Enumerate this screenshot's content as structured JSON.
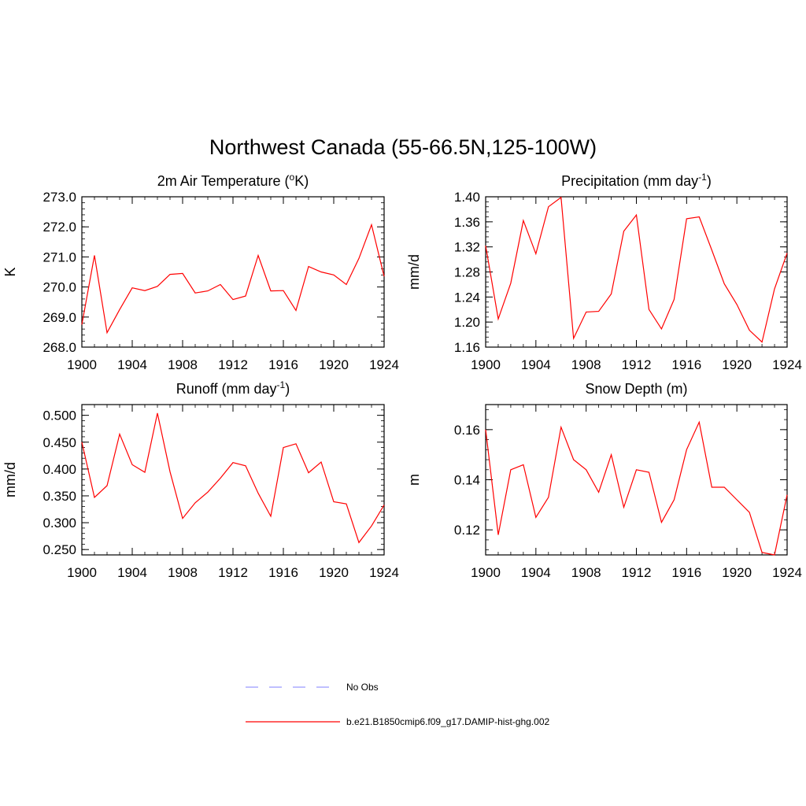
{
  "figure": {
    "title": "Northwest Canada (55-66.5N,125-100W)"
  },
  "chart_data": [
    {
      "type": "line",
      "title_main": "2m Air Temperature (",
      "title_sup": "o",
      "title_end": "K)",
      "ylabel": "K",
      "xlim": [
        1900,
        1924
      ],
      "ylim": [
        268.0,
        273.0
      ],
      "yticks": [
        268.0,
        269.0,
        270.0,
        271.0,
        272.0,
        273.0
      ],
      "ytick_labels": [
        "268.0",
        "269.0",
        "270.0",
        "271.0",
        "272.0",
        "273.0"
      ],
      "xticks": [
        1900,
        1904,
        1908,
        1912,
        1916,
        1920,
        1924
      ],
      "xtick_labels": [
        "1900",
        "1904",
        "1908",
        "1912",
        "1916",
        "1920",
        "1924"
      ],
      "x": [
        1900,
        1901,
        1902,
        1903,
        1904,
        1905,
        1906,
        1907,
        1908,
        1909,
        1910,
        1911,
        1912,
        1913,
        1914,
        1915,
        1916,
        1917,
        1918,
        1919,
        1920,
        1921,
        1922,
        1923,
        1924
      ],
      "series": [
        {
          "color": "#ff0000",
          "values": [
            268.75,
            271.05,
            268.48,
            269.25,
            269.97,
            269.88,
            270.02,
            270.42,
            270.45,
            269.8,
            269.87,
            270.08,
            269.58,
            269.7,
            271.05,
            269.87,
            269.88,
            269.22,
            270.68,
            270.5,
            270.4,
            270.08,
            270.95,
            272.07,
            270.35
          ]
        }
      ]
    },
    {
      "type": "line",
      "title_main": "Precipitation (mm day",
      "title_sup": "-1",
      "title_end": ")",
      "ylabel": "mm/d",
      "xlim": [
        1900,
        1924
      ],
      "ylim": [
        1.16,
        1.4
      ],
      "yticks": [
        1.16,
        1.2,
        1.24,
        1.28,
        1.32,
        1.36,
        1.4
      ],
      "ytick_labels": [
        "1.16",
        "1.20",
        "1.24",
        "1.28",
        "1.32",
        "1.36",
        "1.40"
      ],
      "xticks": [
        1900,
        1904,
        1908,
        1912,
        1916,
        1920,
        1924
      ],
      "xtick_labels": [
        "1900",
        "1904",
        "1908",
        "1912",
        "1916",
        "1920",
        "1924"
      ],
      "x": [
        1900,
        1901,
        1902,
        1903,
        1904,
        1905,
        1906,
        1907,
        1908,
        1909,
        1910,
        1911,
        1912,
        1913,
        1914,
        1915,
        1916,
        1917,
        1918,
        1919,
        1920,
        1921,
        1922,
        1923,
        1924
      ],
      "series": [
        {
          "color": "#ff0000",
          "values": [
            1.322,
            1.205,
            1.262,
            1.362,
            1.309,
            1.384,
            1.399,
            1.174,
            1.216,
            1.217,
            1.245,
            1.345,
            1.371,
            1.22,
            1.189,
            1.236,
            1.365,
            1.368,
            1.315,
            1.261,
            1.228,
            1.187,
            1.168,
            1.253,
            1.31
          ]
        }
      ]
    },
    {
      "type": "line",
      "title_main": "Runoff (mm day",
      "title_sup": "-1",
      "title_end": ")",
      "ylabel": "mm/d",
      "xlim": [
        1900,
        1924
      ],
      "ylim": [
        0.24,
        0.52
      ],
      "yticks": [
        0.25,
        0.3,
        0.35,
        0.4,
        0.45,
        0.5
      ],
      "ytick_labels": [
        "0.250",
        "0.300",
        "0.350",
        "0.400",
        "0.450",
        "0.500"
      ],
      "xticks": [
        1900,
        1904,
        1908,
        1912,
        1916,
        1920,
        1924
      ],
      "xtick_labels": [
        "1900",
        "1904",
        "1908",
        "1912",
        "1916",
        "1920",
        "1924"
      ],
      "x": [
        1900,
        1901,
        1902,
        1903,
        1904,
        1905,
        1906,
        1907,
        1908,
        1909,
        1910,
        1911,
        1912,
        1913,
        1914,
        1915,
        1916,
        1917,
        1918,
        1919,
        1920,
        1921,
        1922,
        1923,
        1924
      ],
      "series": [
        {
          "color": "#ff0000",
          "values": [
            0.45,
            0.347,
            0.369,
            0.465,
            0.408,
            0.394,
            0.504,
            0.395,
            0.308,
            0.337,
            0.357,
            0.383,
            0.412,
            0.406,
            0.355,
            0.312,
            0.44,
            0.447,
            0.393,
            0.413,
            0.339,
            0.335,
            0.263,
            0.294,
            0.333
          ]
        }
      ]
    },
    {
      "type": "line",
      "title_main": "Snow Depth (m)",
      "title_sup": "",
      "title_end": "",
      "ylabel": "m",
      "xlim": [
        1900,
        1924
      ],
      "ylim": [
        0.11,
        0.17
      ],
      "yticks": [
        0.12,
        0.14,
        0.16
      ],
      "ytick_labels": [
        "0.12",
        "0.14",
        "0.16"
      ],
      "xticks": [
        1900,
        1904,
        1908,
        1912,
        1916,
        1920,
        1924
      ],
      "xtick_labels": [
        "1900",
        "1904",
        "1908",
        "1912",
        "1916",
        "1920",
        "1924"
      ],
      "x": [
        1900,
        1901,
        1902,
        1903,
        1904,
        1905,
        1906,
        1907,
        1908,
        1909,
        1910,
        1911,
        1912,
        1913,
        1914,
        1915,
        1916,
        1917,
        1918,
        1919,
        1920,
        1921,
        1922,
        1923,
        1924
      ],
      "series": [
        {
          "color": "#ff0000",
          "values": [
            0.16,
            0.118,
            0.144,
            0.146,
            0.125,
            0.133,
            0.161,
            0.148,
            0.144,
            0.135,
            0.15,
            0.129,
            0.144,
            0.143,
            0.123,
            0.132,
            0.152,
            0.163,
            0.137,
            0.137,
            0.132,
            0.127,
            0.111,
            0.11,
            0.134
          ]
        }
      ]
    }
  ],
  "legend": {
    "placement": "bottom-center",
    "entries": [
      {
        "label": "No Obs",
        "color": "#9999ff",
        "style": "dashed"
      },
      {
        "label": "b.e21.B1850cmip6.f09_g17.DAMIP-hist-ghg.002",
        "color": "#ff0000",
        "style": "solid"
      }
    ]
  }
}
